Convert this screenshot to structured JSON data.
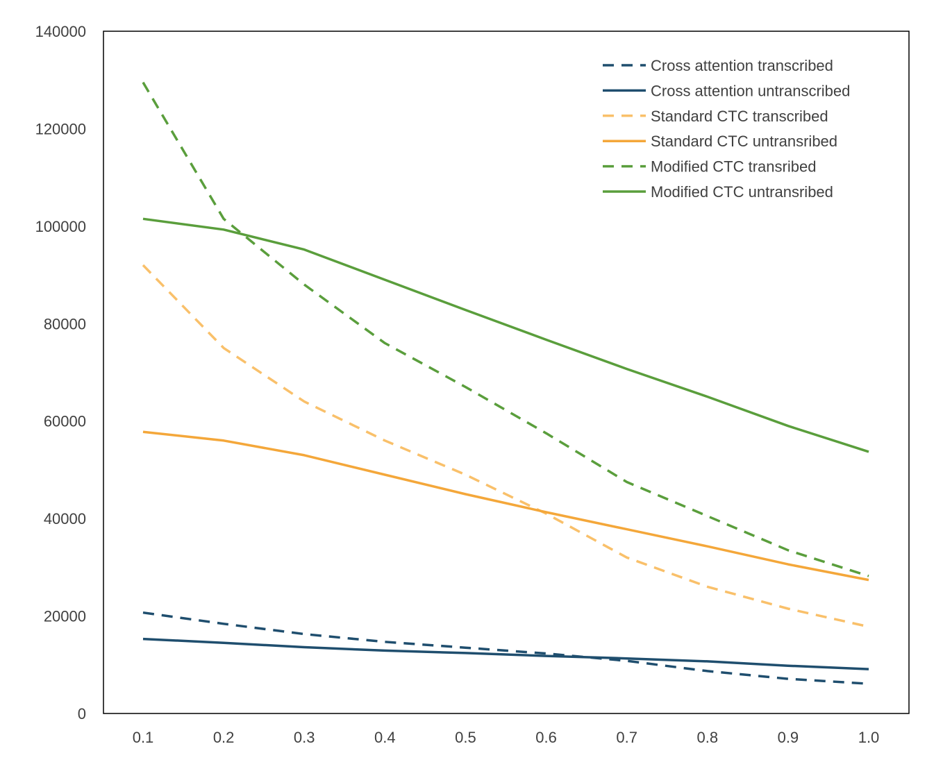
{
  "chart_data": {
    "type": "line",
    "x": [
      0.1,
      0.2,
      0.3,
      0.4,
      0.5,
      0.6,
      0.7,
      0.8,
      0.9,
      1.0
    ],
    "x_tick_labels": [
      "0.1",
      "0.2",
      "0.3",
      "0.4",
      "0.5",
      "0.6",
      "0.7",
      "0.8",
      "0.9",
      "1.0"
    ],
    "y_ticks": [
      0,
      20000,
      40000,
      60000,
      80000,
      100000,
      120000,
      140000
    ],
    "y_tick_labels": [
      "0",
      "20000",
      "40000",
      "60000",
      "80000",
      "100000",
      "120000",
      "140000"
    ],
    "ylim": [
      0,
      140000
    ],
    "title": "",
    "xlabel": "",
    "ylabel": "",
    "grid": false,
    "legend_position": "top-right",
    "series": [
      {
        "name": "Cross attention transcribed",
        "color": "#1f4e6e",
        "dash": true,
        "values": [
          20700,
          18400,
          16300,
          14700,
          13500,
          12300,
          10800,
          8700,
          7100,
          6100
        ]
      },
      {
        "name": "Cross attention untranscribed",
        "color": "#1f4e6e",
        "dash": false,
        "values": [
          15300,
          14500,
          13600,
          12900,
          12400,
          11800,
          11300,
          10700,
          9800,
          9100
        ]
      },
      {
        "name": "Standard CTC transcribed",
        "color": "#f9c06a",
        "dash": true,
        "values": [
          92000,
          75000,
          64000,
          56000,
          49000,
          41000,
          32000,
          26000,
          21500,
          17800
        ]
      },
      {
        "name": "Standard CTC untransribed",
        "color": "#f4a73a",
        "dash": false,
        "values": [
          57800,
          56000,
          53000,
          49000,
          45000,
          41300,
          37800,
          34300,
          30600,
          27400
        ]
      },
      {
        "name": "Modified CTC transribed",
        "color": "#5a9e3c",
        "dash": true,
        "values": [
          129500,
          101500,
          88000,
          76000,
          67000,
          57500,
          47500,
          40500,
          33500,
          28200
        ]
      },
      {
        "name": "Modified CTC untransribed",
        "color": "#5a9e3c",
        "dash": false,
        "values": [
          101500,
          99300,
          95200,
          89000,
          82800,
          76700,
          70700,
          65000,
          59000,
          53700
        ]
      }
    ]
  }
}
